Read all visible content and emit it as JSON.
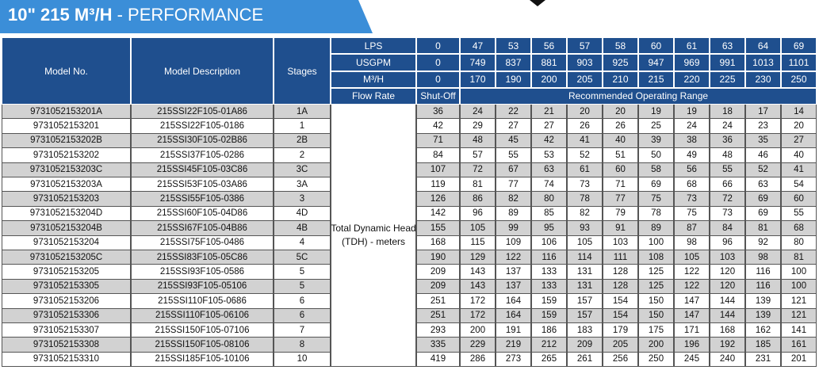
{
  "title": {
    "bold": "10\" 215 M³/H",
    "rest": "- PERFORMANCE"
  },
  "header": {
    "model_no": "Model No.",
    "model_description": "Model Description",
    "stages": "Stages",
    "flow_rows": [
      {
        "label": "LPS",
        "values": [
          0,
          47,
          53,
          56,
          57,
          58,
          60,
          61,
          63,
          64,
          69
        ]
      },
      {
        "label": "USGPM",
        "values": [
          0,
          749,
          837,
          881,
          903,
          925,
          947,
          969,
          991,
          1013,
          1101
        ]
      },
      {
        "label": "M³/H",
        "values": [
          0,
          170,
          190,
          200,
          205,
          210,
          215,
          220,
          225,
          230,
          250
        ]
      }
    ],
    "flow_rate": "Flow Rate",
    "shut_off": "Shut-Off",
    "range": "Recommended Operating Range"
  },
  "tdh": [
    "Total Dynamic Head",
    "(TDH) - meters"
  ],
  "rows": [
    {
      "model": "9731052153201A",
      "description": "215SSI22F105-01A86",
      "stage": "1A",
      "shut_off": 36,
      "heads": [
        24,
        22,
        21,
        20,
        20,
        19,
        19,
        18,
        17,
        14
      ]
    },
    {
      "model": "9731052153201",
      "description": "215SSI22F105-0186",
      "stage": "1",
      "shut_off": 42,
      "heads": [
        29,
        27,
        27,
        26,
        26,
        25,
        24,
        24,
        23,
        20
      ]
    },
    {
      "model": "9731052153202B",
      "description": "215SSI30F105-02B86",
      "stage": "2B",
      "shut_off": 71,
      "heads": [
        48,
        45,
        42,
        41,
        40,
        39,
        38,
        36,
        35,
        27
      ]
    },
    {
      "model": "9731052153202",
      "description": "215SSI37F105-0286",
      "stage": "2",
      "shut_off": 84,
      "heads": [
        57,
        55,
        53,
        52,
        51,
        50,
        49,
        48,
        46,
        40
      ]
    },
    {
      "model": "9731052153203C",
      "description": "215SSI45F105-03C86",
      "stage": "3C",
      "shut_off": 107,
      "heads": [
        72,
        67,
        63,
        61,
        60,
        58,
        56,
        55,
        52,
        41
      ]
    },
    {
      "model": "9731052153203A",
      "description": "215SSI53F105-03A86",
      "stage": "3A",
      "shut_off": 119,
      "heads": [
        81,
        77,
        74,
        73,
        71,
        69,
        68,
        66,
        63,
        54
      ]
    },
    {
      "model": "9731052153203",
      "description": "215SSI55F105-0386",
      "stage": "3",
      "shut_off": 126,
      "heads": [
        86,
        82,
        80,
        78,
        77,
        75,
        73,
        72,
        69,
        60
      ]
    },
    {
      "model": "9731052153204D",
      "description": "215SSI60F105-04D86",
      "stage": "4D",
      "shut_off": 142,
      "heads": [
        96,
        89,
        85,
        82,
        79,
        78,
        75,
        73,
        69,
        55
      ]
    },
    {
      "model": "9731052153204B",
      "description": "215SSI67F105-04B86",
      "stage": "4B",
      "shut_off": 155,
      "heads": [
        105,
        99,
        95,
        93,
        91,
        89,
        87,
        84,
        81,
        68
      ]
    },
    {
      "model": "9731052153204",
      "description": "215SSI75F105-0486",
      "stage": "4",
      "shut_off": 168,
      "heads": [
        115,
        109,
        106,
        105,
        103,
        100,
        98,
        96,
        92,
        80
      ]
    },
    {
      "model": "9731052153205C",
      "description": "215SSI83F105-05C86",
      "stage": "5C",
      "shut_off": 190,
      "heads": [
        129,
        122,
        116,
        114,
        111,
        108,
        105,
        103,
        98,
        81
      ]
    },
    {
      "model": "9731052153205",
      "description": "215SSI93F105-0586",
      "stage": "5",
      "shut_off": 209,
      "heads": [
        143,
        137,
        133,
        131,
        128,
        125,
        122,
        120,
        116,
        100
      ]
    },
    {
      "model": "9731052153305",
      "description": "215SSI93F105-05106",
      "stage": "5",
      "shut_off": 209,
      "heads": [
        143,
        137,
        133,
        131,
        128,
        125,
        122,
        120,
        116,
        100
      ]
    },
    {
      "model": "9731052153206",
      "description": "215SSI110F105-0686",
      "stage": "6",
      "shut_off": 251,
      "heads": [
        172,
        164,
        159,
        157,
        154,
        150,
        147,
        144,
        139,
        121
      ]
    },
    {
      "model": "9731052153306",
      "description": "215SSI110F105-06106",
      "stage": "6",
      "shut_off": 251,
      "heads": [
        172,
        164,
        159,
        157,
        154,
        150,
        147,
        144,
        139,
        121
      ]
    },
    {
      "model": "9731052153307",
      "description": "215SSI150F105-07106",
      "stage": "7",
      "shut_off": 293,
      "heads": [
        200,
        191,
        186,
        183,
        179,
        175,
        171,
        168,
        162,
        141
      ]
    },
    {
      "model": "9731052153308",
      "description": "215SSI150F105-08106",
      "stage": "8",
      "shut_off": 335,
      "heads": [
        229,
        219,
        212,
        209,
        205,
        200,
        196,
        192,
        185,
        161
      ]
    },
    {
      "model": "9731052153310",
      "description": "215SSI185F105-10106",
      "stage": "10",
      "shut_off": 419,
      "heads": [
        286,
        273,
        265,
        261,
        256,
        250,
        245,
        240,
        231,
        201
      ]
    }
  ]
}
